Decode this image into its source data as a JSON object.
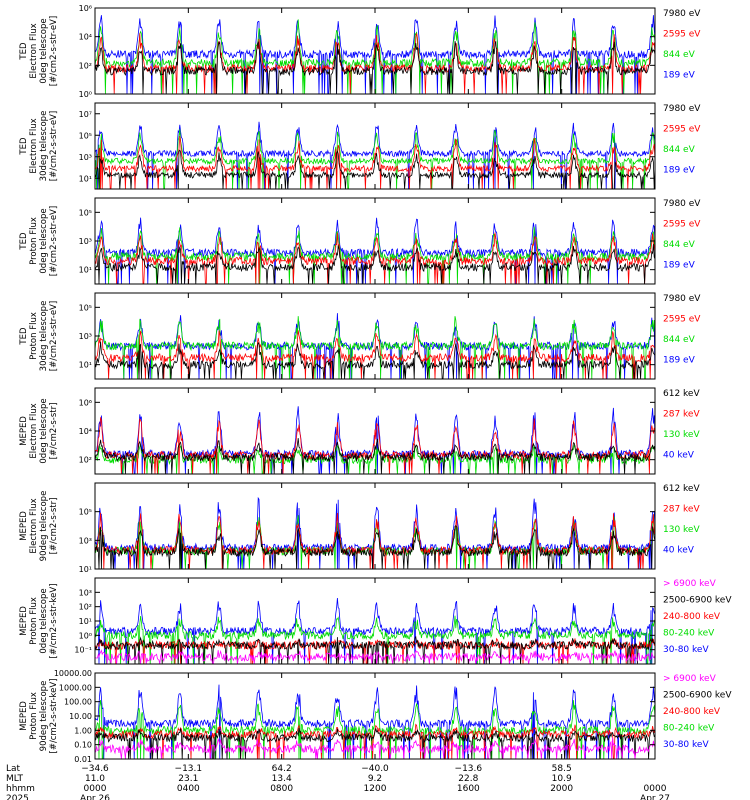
{
  "colors": {
    "blue": "#0000ff",
    "red": "#ff0000",
    "green": "#00dd00",
    "black": "#000000",
    "magenta": "#ff00ff",
    "axis": "#000000"
  },
  "chart_data": [
    {
      "type": "line",
      "ylabel": [
        "TED",
        "Electron Flux",
        "0deg telescope",
        "[#/cm2-s-str-eV]"
      ],
      "ylim": [
        1,
        1000000
      ],
      "yscale": "log",
      "yticks": [
        {
          "v": 1,
          "l": "10⁰"
        },
        {
          "v": 100,
          "l": "10²"
        },
        {
          "v": 10000,
          "l": "10⁴"
        },
        {
          "v": 1000000,
          "l": "10⁶"
        }
      ],
      "series": [
        {
          "name": "7980 eV",
          "color": "#000000",
          "base": 40,
          "peak": 5000
        },
        {
          "name": "2595 eV",
          "color": "#ff0000",
          "base": 60,
          "peak": 20000
        },
        {
          "name": "844 eV",
          "color": "#00dd00",
          "base": 150,
          "peak": 100000
        },
        {
          "name": "189 eV",
          "color": "#0000ff",
          "base": 600,
          "peak": 400000
        }
      ]
    },
    {
      "type": "line",
      "ylabel": [
        "TED",
        "Electron Flux",
        "30deg telescope",
        "[#/cm2-s-str-eV]"
      ],
      "ylim": [
        1,
        100000000
      ],
      "yscale": "log",
      "yticks": [
        {
          "v": 10,
          "l": "10¹"
        },
        {
          "v": 1000,
          "l": "10³"
        },
        {
          "v": 100000,
          "l": "10⁵"
        },
        {
          "v": 10000000,
          "l": "10⁷"
        }
      ],
      "series": [
        {
          "name": "7980 eV",
          "color": "#000000",
          "base": 20,
          "peak": 3000
        },
        {
          "name": "2595 eV",
          "color": "#ff0000",
          "base": 80,
          "peak": 50000
        },
        {
          "name": "844 eV",
          "color": "#00dd00",
          "base": 400,
          "peak": 300000
        },
        {
          "name": "189 eV",
          "color": "#0000ff",
          "base": 2000,
          "peak": 2000000
        }
      ]
    },
    {
      "type": "line",
      "ylabel": [
        "TED",
        "Proton Flux",
        "0deg telescope",
        "[#/cm2-s-str-eV]"
      ],
      "ylim": [
        1,
        1000000
      ],
      "yscale": "log",
      "yticks": [
        {
          "v": 10,
          "l": "10¹"
        },
        {
          "v": 1000,
          "l": "10³"
        },
        {
          "v": 100000,
          "l": "10⁵"
        }
      ],
      "series": [
        {
          "name": "7980 eV",
          "color": "#000000",
          "base": 15,
          "peak": 500
        },
        {
          "name": "2595 eV",
          "color": "#ff0000",
          "base": 40,
          "peak": 3000
        },
        {
          "name": "844 eV",
          "color": "#00dd00",
          "base": 80,
          "peak": 8000
        },
        {
          "name": "189 eV",
          "color": "#0000ff",
          "base": 150,
          "peak": 50000
        }
      ]
    },
    {
      "type": "line",
      "ylabel": [
        "TED",
        "Proton Flux",
        "30deg telescope",
        "[#/cm2-s-str-eV]"
      ],
      "ylim": [
        1,
        1000000
      ],
      "yscale": "log",
      "yticks": [
        {
          "v": 10,
          "l": "10¹"
        },
        {
          "v": 1000,
          "l": "10³"
        },
        {
          "v": 100000,
          "l": "10⁵"
        }
      ],
      "series": [
        {
          "name": "7980 eV",
          "color": "#000000",
          "base": 10,
          "peak": 300
        },
        {
          "name": "2595 eV",
          "color": "#ff0000",
          "base": 30,
          "peak": 2000
        },
        {
          "name": "844 eV",
          "color": "#00dd00",
          "base": 200,
          "peak": 20000
        },
        {
          "name": "189 eV",
          "color": "#0000ff",
          "base": 200,
          "peak": 30000
        }
      ]
    },
    {
      "type": "line",
      "ylabel": [
        "MEPED",
        "Electron Flux",
        "0deg telescope",
        "[#/cm2-s-str]"
      ],
      "ylim": [
        10,
        10000000
      ],
      "yscale": "log",
      "yticks": [
        {
          "v": 100,
          "l": "10²"
        },
        {
          "v": 10000,
          "l": "10⁴"
        },
        {
          "v": 1000000,
          "l": "10⁶"
        }
      ],
      "series": [
        {
          "name": "612 keV",
          "color": "#000000",
          "base": 150,
          "peak": 2000
        },
        {
          "name": "287 keV",
          "color": "#ff0000",
          "base": 200,
          "peak": 100000
        },
        {
          "name": "130 keV",
          "color": "#00dd00",
          "base": 100,
          "peak": 1000
        },
        {
          "name": "40 keV",
          "color": "#0000ff",
          "base": 250,
          "peak": 500000
        }
      ]
    },
    {
      "type": "line",
      "ylabel": [
        "MEPED",
        "Electron Flux",
        "90deg telescope",
        "[#/cm2-s-str]"
      ],
      "ylim": [
        10,
        10000000
      ],
      "yscale": "log",
      "yticks": [
        {
          "v": 10,
          "l": "10¹"
        },
        {
          "v": 1000,
          "l": "10³"
        },
        {
          "v": 100000,
          "l": "10⁵"
        }
      ],
      "series": [
        {
          "name": "612 keV",
          "color": "#000000",
          "base": 150,
          "peak": 10000
        },
        {
          "name": "287 keV",
          "color": "#ff0000",
          "base": 200,
          "peak": 100000
        },
        {
          "name": "130 keV",
          "color": "#00dd00",
          "base": 180,
          "peak": 50000
        },
        {
          "name": "40 keV",
          "color": "#0000ff",
          "base": 300,
          "peak": 1000000
        }
      ]
    },
    {
      "type": "line",
      "ylabel": [
        "MEPED",
        "Proton Flux",
        "0deg telescope",
        "[#/cm2-s-str-keV]"
      ],
      "ylim": [
        0.01,
        10000
      ],
      "yscale": "log",
      "yticks": [
        {
          "v": 0.1,
          "l": "10⁻¹"
        },
        {
          "v": 1,
          "l": "10⁰"
        },
        {
          "v": 10,
          "l": "10¹"
        },
        {
          "v": 100,
          "l": "10²"
        },
        {
          "v": 1000,
          "l": "10³"
        }
      ],
      "series": [
        {
          "name": "> 6900 keV",
          "color": "#ff00ff",
          "base": 0.03,
          "peak": 0.06
        },
        {
          "name": "2500-6900 keV",
          "color": "#000000",
          "base": 0.2,
          "peak": 0.5
        },
        {
          "name": "240-800 keV",
          "color": "#ff0000",
          "base": 0.2,
          "peak": 0.4
        },
        {
          "name": "80-240 keV",
          "color": "#00dd00",
          "base": 1,
          "peak": 20
        },
        {
          "name": "30-80 keV",
          "color": "#0000ff",
          "base": 2,
          "peak": 300
        }
      ]
    },
    {
      "type": "line",
      "ylabel": [
        "MEPED",
        "Proton Flux",
        "90deg telescope",
        "[#/cm2-s-str-keV]"
      ],
      "ylim": [
        0.01,
        10000
      ],
      "yscale": "log",
      "yticks": [
        {
          "v": 0.01,
          "l": "0.01"
        },
        {
          "v": 0.1,
          "l": "0.10"
        },
        {
          "v": 1,
          "l": "1.00"
        },
        {
          "v": 10,
          "l": "10.00"
        },
        {
          "v": 100,
          "l": "100.00"
        },
        {
          "v": 1000,
          "l": "1000.00"
        },
        {
          "v": 10000,
          "l": "10000.00"
        }
      ],
      "series": [
        {
          "name": "> 6900 keV",
          "color": "#ff00ff",
          "base": 0.05,
          "peak": 0.2
        },
        {
          "name": "2500-6900 keV",
          "color": "#000000",
          "base": 0.3,
          "peak": 1
        },
        {
          "name": "240-800 keV",
          "color": "#ff0000",
          "base": 0.5,
          "peak": 2
        },
        {
          "name": "80-240 keV",
          "color": "#00dd00",
          "base": 1,
          "peak": 100
        },
        {
          "name": "30-80 keV",
          "color": "#0000ff",
          "base": 3,
          "peak": 2000
        }
      ]
    }
  ],
  "x_axis": {
    "row_labels": [
      "Lat",
      "MLT",
      "hhmm",
      "2025"
    ],
    "ticks": [
      {
        "lat": "−34.6",
        "mlt": "11.0",
        "hhmm": "0000",
        "date": "Apr 26"
      },
      {
        "lat": "−13.1",
        "mlt": "23.1",
        "hhmm": "0400",
        "date": ""
      },
      {
        "lat": "64.2",
        "mlt": "13.4",
        "hhmm": "0800",
        "date": ""
      },
      {
        "lat": "−40.0",
        "mlt": "9.2",
        "hhmm": "1200",
        "date": ""
      },
      {
        "lat": "−13.6",
        "mlt": "22.8",
        "hhmm": "1600",
        "date": ""
      },
      {
        "lat": "58.5",
        "mlt": "10.9",
        "hhmm": "2000",
        "date": ""
      },
      {
        "lat": "",
        "mlt": "",
        "hhmm": "0000",
        "date": "Apr 27"
      }
    ],
    "range_hours": [
      0,
      24
    ]
  }
}
